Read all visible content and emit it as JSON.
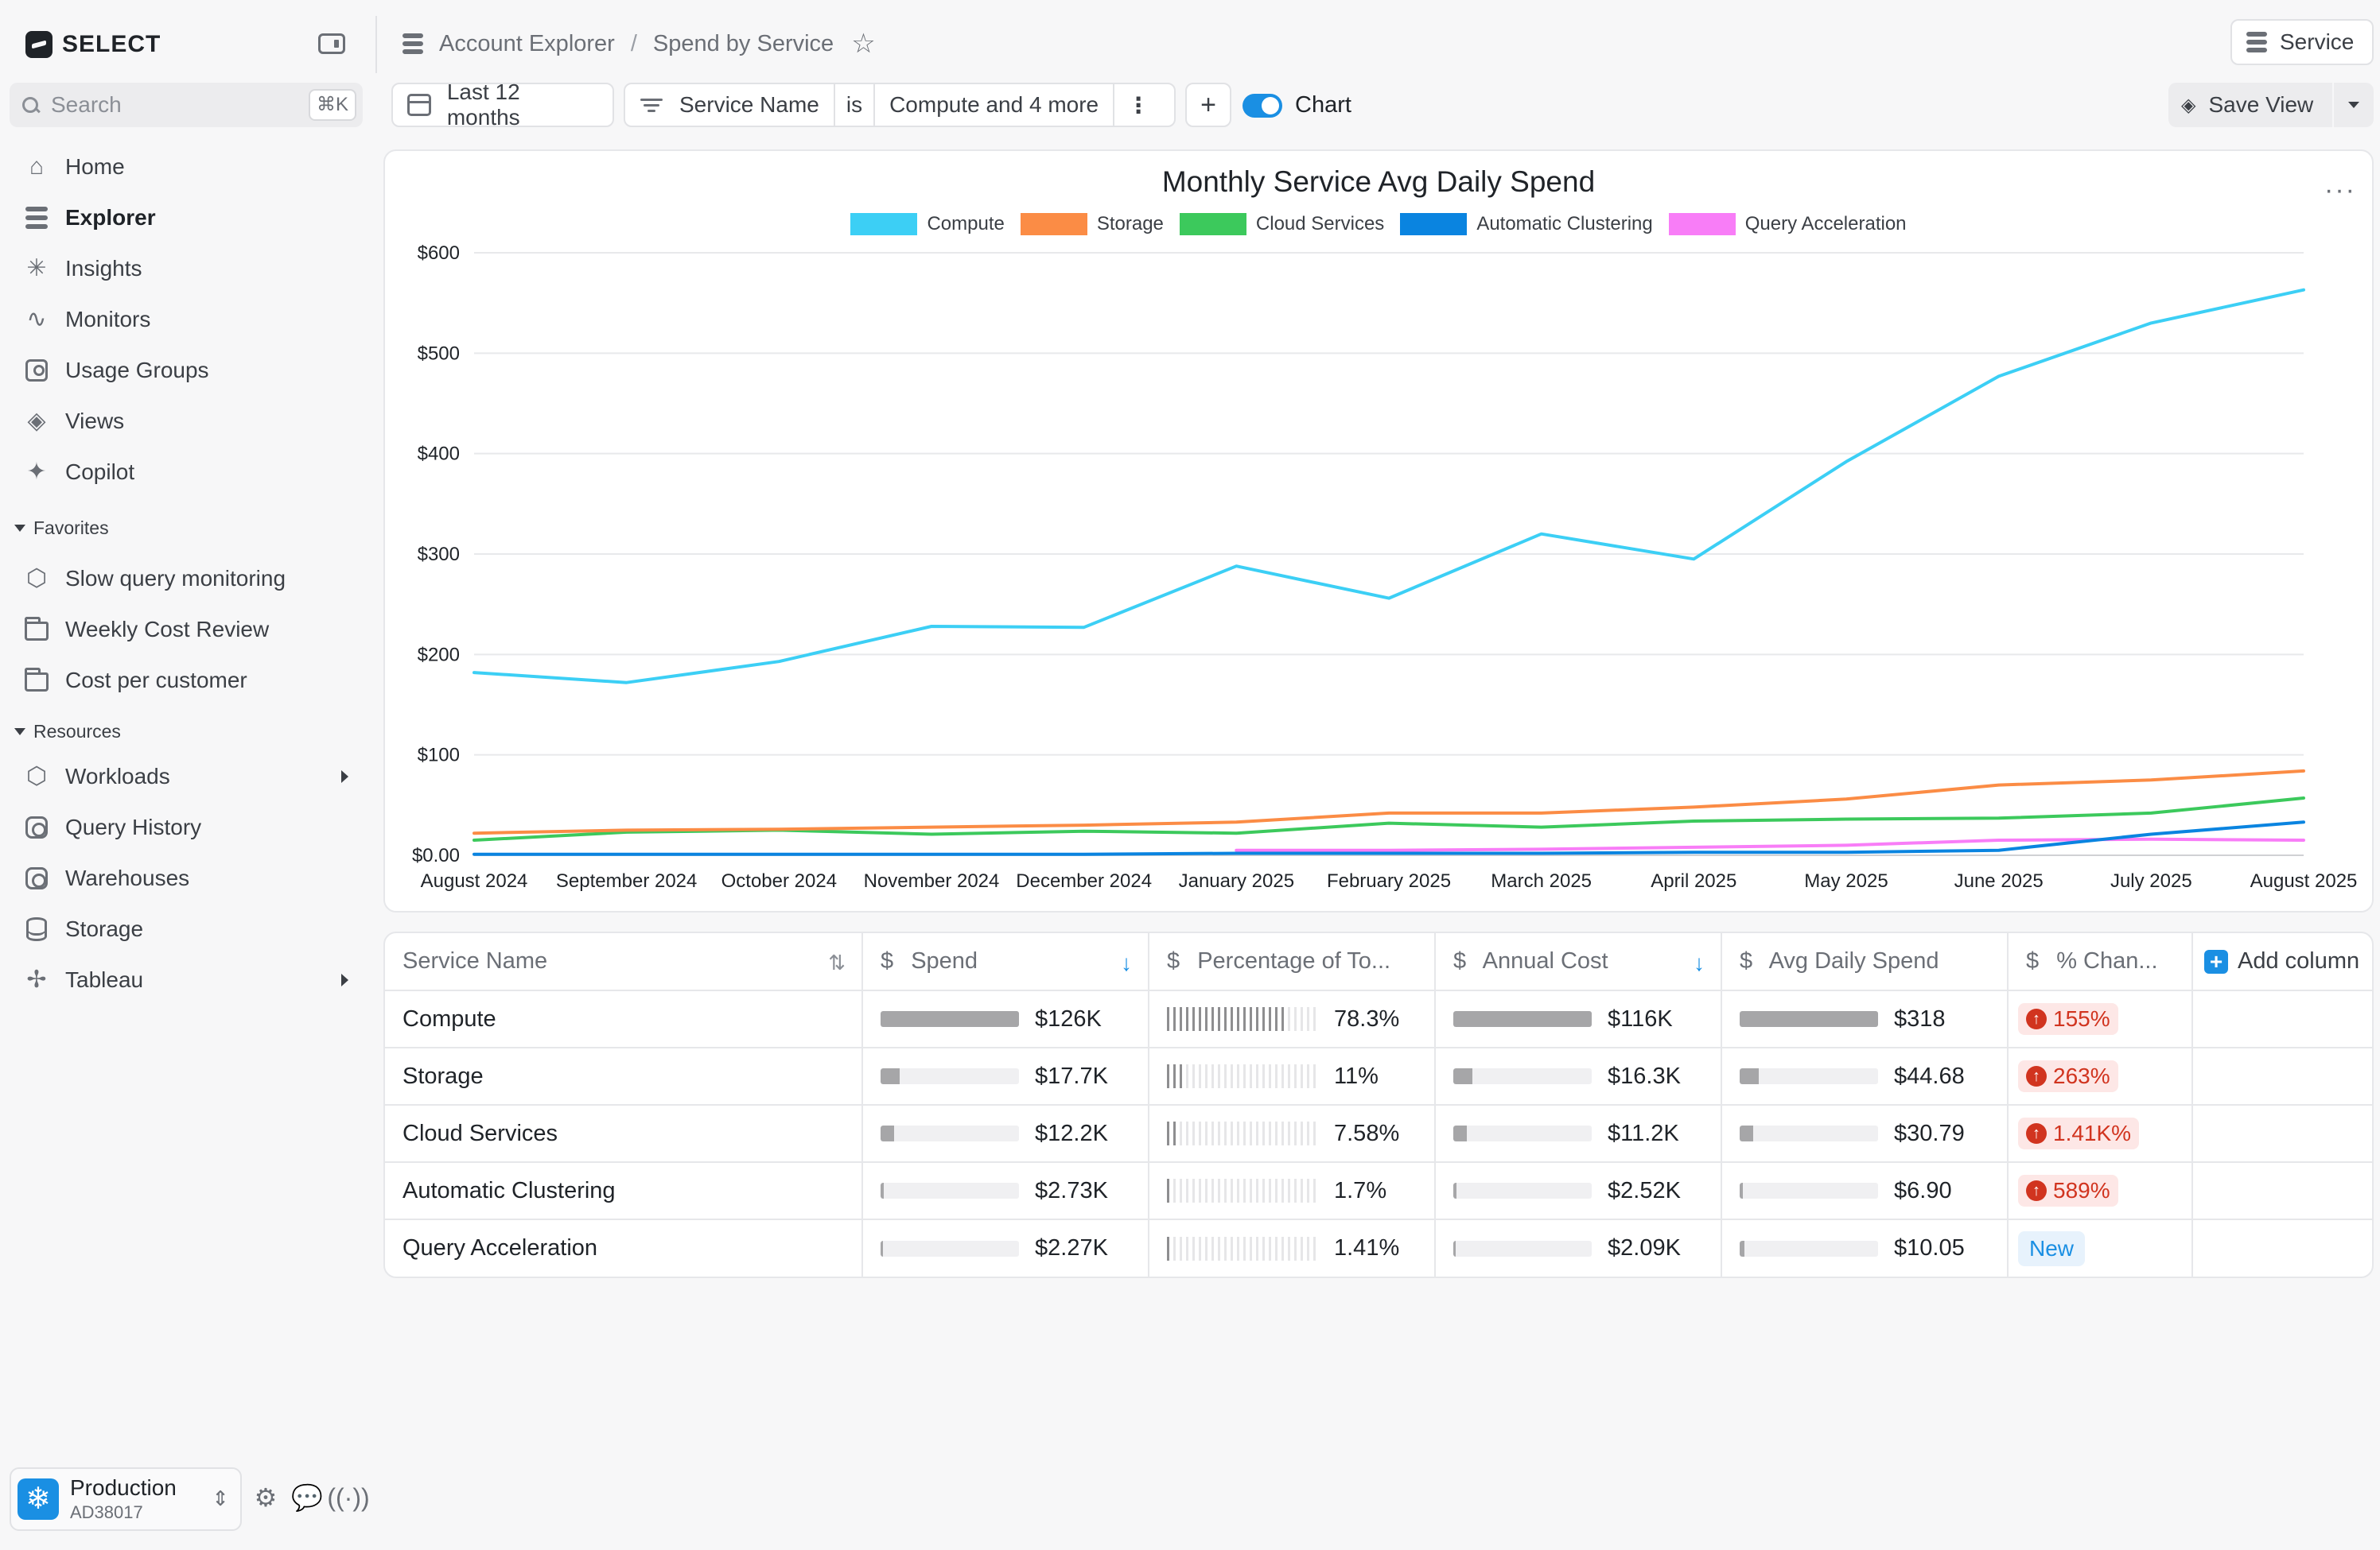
{
  "app": {
    "brand": "SELECT"
  },
  "sidebar": {
    "search_placeholder": "Search",
    "search_shortcut": "⌘K",
    "nav": [
      {
        "label": "Home",
        "icon": "home-icon"
      },
      {
        "label": "Explorer",
        "icon": "explorer-icon",
        "active": true
      },
      {
        "label": "Insights",
        "icon": "insights-icon"
      },
      {
        "label": "Monitors",
        "icon": "monitors-icon"
      },
      {
        "label": "Usage Groups",
        "icon": "usage-groups-icon"
      },
      {
        "label": "Views",
        "icon": "views-icon"
      },
      {
        "label": "Copilot",
        "icon": "copilot-icon"
      }
    ],
    "favorites_header": "Favorites",
    "favorites": [
      {
        "label": "Slow query monitoring",
        "icon": "cube-icon"
      },
      {
        "label": "Weekly Cost Review",
        "icon": "folder-icon"
      },
      {
        "label": "Cost per customer",
        "icon": "folder-icon"
      }
    ],
    "resources_header": "Resources",
    "resources": [
      {
        "label": "Workloads",
        "icon": "cube-icon"
      },
      {
        "label": "Query History",
        "icon": "query-history-icon"
      },
      {
        "label": "Warehouses",
        "icon": "warehouse-icon"
      },
      {
        "label": "Storage",
        "icon": "database-icon"
      },
      {
        "label": "Tableau",
        "icon": "tableau-icon"
      }
    ],
    "account": {
      "name": "Production",
      "id": "AD38017"
    }
  },
  "header": {
    "breadcrumb_root": "Account Explorer",
    "breadcrumb_sep": "/",
    "breadcrumb_current": "Spend by Service",
    "service_button": "Service"
  },
  "toolbar": {
    "date_range": "Last 12 months",
    "filter_field": "Service Name",
    "filter_op": "is",
    "filter_value": "Compute and 4 more",
    "chart_toggle_label": "Chart",
    "save_view": "Save View"
  },
  "colors": {
    "accent": "#1a8fe3",
    "compute": "#3ccff5",
    "storage": "#fb8c45",
    "cloud_services": "#3cc95c",
    "automatic_clustering": "#0a84e0",
    "query_acceleration": "#f87df7"
  },
  "chart_data": {
    "type": "line",
    "title": "Monthly Service Avg Daily Spend",
    "xlabel": "",
    "ylabel": "",
    "ylim": [
      0,
      600
    ],
    "yticks": [
      "$0.00",
      "$100",
      "$200",
      "$300",
      "$400",
      "$500",
      "$600"
    ],
    "categories": [
      "August 2024",
      "September 2024",
      "October 2024",
      "November 2024",
      "December 2024",
      "January 2025",
      "February 2025",
      "March 2025",
      "April 2025",
      "May 2025",
      "June 2025",
      "July 2025",
      "August 2025"
    ],
    "series": [
      {
        "name": "Compute",
        "color": "#3ccff5",
        "values": [
          182,
          172,
          193,
          228,
          227,
          288,
          256,
          320,
          295,
          392,
          477,
          530,
          563
        ]
      },
      {
        "name": "Storage",
        "color": "#fb8c45",
        "values": [
          22,
          25,
          26,
          28,
          30,
          33,
          42,
          42,
          48,
          56,
          70,
          75,
          84
        ]
      },
      {
        "name": "Cloud Services",
        "color": "#3cc95c",
        "values": [
          15,
          23,
          25,
          21,
          24,
          22,
          32,
          28,
          34,
          36,
          37,
          42,
          57
        ]
      },
      {
        "name": "Automatic Clustering",
        "color": "#0a84e0",
        "values": [
          1,
          1,
          1,
          1,
          1,
          2,
          2,
          2,
          3,
          3,
          5,
          21,
          33
        ]
      },
      {
        "name": "Query Acceleration",
        "color": "#f87df7",
        "values": [
          null,
          null,
          null,
          null,
          null,
          5,
          5,
          6,
          8,
          10,
          15,
          16,
          15
        ]
      }
    ]
  },
  "table": {
    "columns": [
      "Service Name",
      "Spend",
      "Percentage of To...",
      "Annual Cost",
      "Avg Daily Spend",
      "% Chan...",
      "Add column"
    ],
    "rows": [
      {
        "service": "Compute",
        "spend": "$126K",
        "spend_frac": 1.0,
        "pct": "78.3%",
        "pct_frac": 0.783,
        "annual": "$116K",
        "annual_frac": 1.0,
        "avg": "$318",
        "avg_frac": 1.0,
        "change": "155%",
        "change_type": "up"
      },
      {
        "service": "Storage",
        "spend": "$17.7K",
        "spend_frac": 0.14,
        "pct": "11%",
        "pct_frac": 0.11,
        "annual": "$16.3K",
        "annual_frac": 0.14,
        "avg": "$44.68",
        "avg_frac": 0.14,
        "change": "263%",
        "change_type": "up"
      },
      {
        "service": "Cloud Services",
        "spend": "$12.2K",
        "spend_frac": 0.097,
        "pct": "7.58%",
        "pct_frac": 0.0758,
        "annual": "$11.2K",
        "annual_frac": 0.097,
        "avg": "$30.79",
        "avg_frac": 0.097,
        "change": "1.41K%",
        "change_type": "up"
      },
      {
        "service": "Automatic Clustering",
        "spend": "$2.73K",
        "spend_frac": 0.022,
        "pct": "1.7%",
        "pct_frac": 0.017,
        "annual": "$2.52K",
        "annual_frac": 0.022,
        "avg": "$6.90",
        "avg_frac": 0.022,
        "change": "589%",
        "change_type": "up"
      },
      {
        "service": "Query Acceleration",
        "spend": "$2.27K",
        "spend_frac": 0.018,
        "pct": "1.41%",
        "pct_frac": 0.0141,
        "annual": "$2.09K",
        "annual_frac": 0.018,
        "avg": "$10.05",
        "avg_frac": 0.032,
        "change": "New",
        "change_type": "new"
      }
    ]
  }
}
